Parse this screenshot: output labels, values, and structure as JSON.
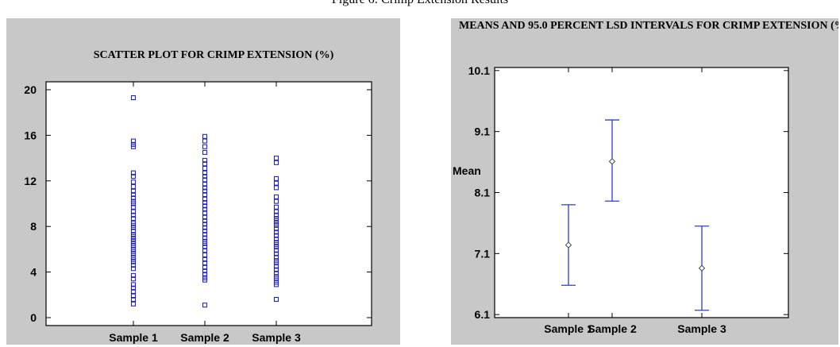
{
  "figure_caption": "Figure 6: Crimp Extension Results",
  "chart_data": [
    {
      "type": "scatter",
      "title": "SCATTER PLOT FOR CRIMP EXTENSION (%)",
      "ylim": [
        0,
        20
      ],
      "yticks": [
        0,
        4,
        8,
        12,
        16,
        20
      ],
      "categories": [
        "Sample 1",
        "Sample 2",
        "Sample 3"
      ],
      "series": [
        {
          "category": "Sample 1",
          "values": [
            19.3,
            15.5,
            15.2,
            15.0,
            12.7,
            12.4,
            11.9,
            11.5,
            11.1,
            10.8,
            10.5,
            10.2,
            10.0,
            9.7,
            9.3,
            9.0,
            8.7,
            8.3,
            8.1,
            7.9,
            7.6,
            7.3,
            7.1,
            6.9,
            6.7,
            6.5,
            6.3,
            6.0,
            5.8,
            5.6,
            5.3,
            5.1,
            4.9,
            4.6,
            4.3,
            3.7,
            3.4,
            2.9,
            2.6,
            2.3,
            1.9,
            1.6,
            1.2
          ]
        },
        {
          "category": "Sample 2",
          "values": [
            15.9,
            15.5,
            15.0,
            14.5,
            13.8,
            13.5,
            13.1,
            12.7,
            12.4,
            12.1,
            11.7,
            11.4,
            11.1,
            10.8,
            10.4,
            10.1,
            9.8,
            9.5,
            9.2,
            8.8,
            8.5,
            8.2,
            7.9,
            7.6,
            7.3,
            7.0,
            6.7,
            6.5,
            6.2,
            5.9,
            5.5,
            5.1,
            4.8,
            4.4,
            4.1,
            3.8,
            3.5,
            3.3,
            1.1
          ]
        },
        {
          "category": "Sample 3",
          "values": [
            14.0,
            13.6,
            12.2,
            11.8,
            11.4,
            10.6,
            10.2,
            9.7,
            9.3,
            9.0,
            8.7,
            8.5,
            8.3,
            8.1,
            7.8,
            7.5,
            7.2,
            6.9,
            6.6,
            6.4,
            6.2,
            5.9,
            5.6,
            5.3,
            5.0,
            4.8,
            4.5,
            4.2,
            3.9,
            3.6,
            3.4,
            3.1,
            2.9,
            1.6
          ]
        }
      ],
      "marker_color": "#2323d6",
      "grid": false
    },
    {
      "type": "errorbar",
      "title": "MEANS AND 95.0 PERCENT LSD INTERVALS FOR CRIMP EXTENSION (%",
      "ylabel": "Mean",
      "ylim": [
        6.05,
        10.15
      ],
      "yticks": [
        6.1,
        7.1,
        8.1,
        9.1,
        10.1
      ],
      "categories": [
        "Sample 1",
        "Sample 2",
        "Sample 3"
      ],
      "means": [
        7.24,
        8.61,
        6.86
      ],
      "lower": [
        6.58,
        7.96,
        6.17
      ],
      "upper": [
        7.9,
        9.29,
        7.55
      ],
      "bar_color": "#2a3ed8",
      "grid": false
    }
  ]
}
